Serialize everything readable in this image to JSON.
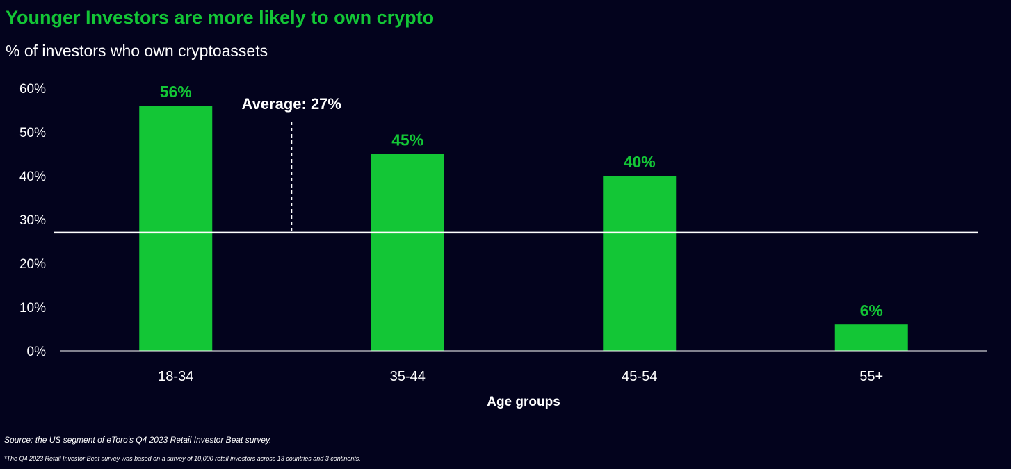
{
  "header": {
    "title": "Younger Investors are more likely to own crypto",
    "subtitle": "% of investors who own cryptoassets"
  },
  "chart_data": {
    "type": "bar",
    "categories": [
      "18-34",
      "35-44",
      "45-54",
      "55+"
    ],
    "values": [
      56,
      45,
      40,
      6
    ],
    "value_labels": [
      "56%",
      "45%",
      "40%",
      "6%"
    ],
    "xlabel": "Age groups",
    "ylabel": "",
    "ylim": [
      0,
      60
    ],
    "yticks": [
      0,
      10,
      20,
      30,
      40,
      50,
      60
    ],
    "ytick_labels": [
      "0%",
      "10%",
      "20%",
      "30%",
      "40%",
      "50%",
      "60%"
    ],
    "average": {
      "value": 27,
      "label": "Average: 27%"
    },
    "grid": false,
    "legend": "none",
    "colors": {
      "bar": "#13c636",
      "value_label": "#13c636",
      "average_line": "#ffffff",
      "background": "#03031d",
      "axis": "#ffffff"
    }
  },
  "footer": {
    "source": "Source: the US segment of eToro's Q4 2023 Retail Investor Beat survey.",
    "footnote": "*The Q4 2023 Retail Investor Beat survey was based on a survey of 10,000 retail investors across 13 countries and 3 continents."
  }
}
